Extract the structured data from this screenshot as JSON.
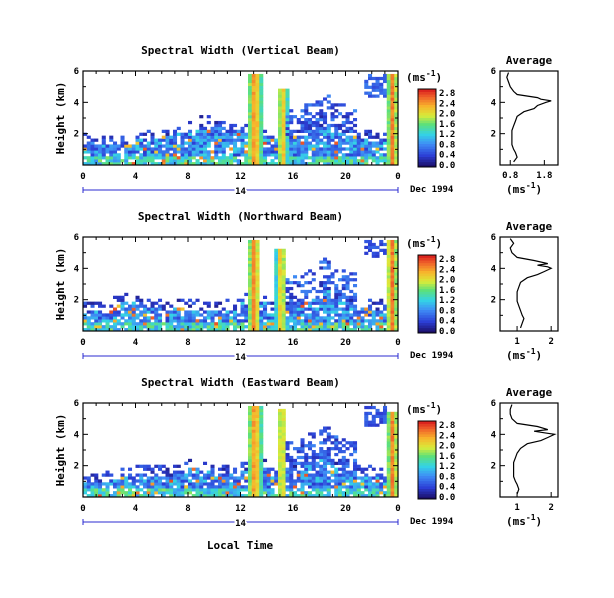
{
  "figure": {
    "xlabel": "Local Time",
    "date_label": "Dec 1994"
  },
  "chart_data": [
    {
      "type": "heatmap",
      "title": "Spectral Width (Vertical Beam)",
      "ylabel": "Height (km)",
      "xlabel": "Local Time",
      "x_ticks": [
        "0",
        "4",
        "8",
        "12",
        "16",
        "20",
        "0"
      ],
      "y_ticks": [
        "2",
        "4",
        "6"
      ],
      "day_label": "14",
      "xlim": [
        0,
        24
      ],
      "ylim": [
        0,
        6
      ],
      "colorbar": {
        "unit": "(ms-1)",
        "ticks": [
          "0.0",
          "0.4",
          "0.8",
          "1.2",
          "1.6",
          "2.0",
          "2.4",
          "2.8"
        ]
      },
      "features": [
        {
          "kind": "boundary_layer",
          "from": 0,
          "to": 24,
          "top_km": [
            1.5,
            1.4,
            1.3,
            1.4,
            1.6,
            1.6,
            1.8,
            2.1,
            2.3,
            2.5,
            2.4,
            2.2,
            2.0,
            1.9,
            1.7,
            1.6,
            1.8,
            2.2,
            2.5,
            2.0,
            1.8,
            1.6,
            1.5,
            1.5
          ]
        },
        {
          "kind": "high_width_column",
          "from": 12.6,
          "to": 13.6,
          "top_km": 5.9,
          "peak": 2.8
        },
        {
          "kind": "high_width_column",
          "from": 14.8,
          "to": 15.6,
          "top_km": 4.8,
          "peak": 2.6
        },
        {
          "kind": "high_width_column",
          "from": 23.2,
          "to": 24,
          "top_km": 5.8,
          "peak": 2.8
        },
        {
          "kind": "upper_patch",
          "from": 21.4,
          "to": 23.0,
          "bottom_km": 4.3,
          "top_km": 5.9,
          "level": 0.5
        }
      ],
      "average": {
        "title": "Average",
        "xlabel": "(ms-1)",
        "x_ticks": [
          "0.8",
          "1.8"
        ],
        "xlim": [
          0.5,
          2.2
        ],
        "y_ticks": [
          "2",
          "4",
          "6"
        ],
        "profile": {
          "height": [
            0.2,
            0.5,
            0.8,
            1.0,
            1.3,
            1.6,
            1.9,
            2.2,
            2.5,
            2.8,
            3.1,
            3.4,
            3.6,
            3.8,
            4.0,
            4.1,
            4.2,
            4.3,
            4.5,
            4.7,
            5.0,
            5.3,
            5.6,
            5.9
          ],
          "width": [
            0.9,
            1.0,
            0.95,
            0.9,
            0.85,
            0.85,
            0.85,
            0.85,
            0.9,
            0.95,
            1.0,
            1.2,
            1.5,
            1.6,
            1.85,
            2.0,
            1.7,
            1.6,
            1.0,
            0.9,
            0.8,
            0.75,
            0.7,
            0.75
          ]
        }
      }
    },
    {
      "type": "heatmap",
      "title": "Spectral Width (Northward Beam)",
      "ylabel": "Height (km)",
      "xlabel": "Local Time",
      "x_ticks": [
        "0",
        "4",
        "8",
        "12",
        "16",
        "20",
        "0"
      ],
      "y_ticks": [
        "2",
        "4",
        "6"
      ],
      "day_label": "14",
      "xlim": [
        0,
        24
      ],
      "ylim": [
        0,
        6
      ],
      "colorbar": {
        "unit": "(ms-1)",
        "ticks": [
          "0.0",
          "0.4",
          "0.8",
          "1.2",
          "1.6",
          "2.0",
          "2.4",
          "2.8"
        ]
      },
      "features": [
        {
          "kind": "boundary_layer",
          "from": 0,
          "to": 24,
          "top_km": [
            1.2,
            1.3,
            1.6,
            1.8,
            1.7,
            1.5,
            1.4,
            1.5,
            1.5,
            1.3,
            1.3,
            1.4,
            1.8,
            1.9,
            1.5,
            1.4,
            1.6,
            2.0,
            2.6,
            1.9,
            1.7,
            1.5,
            1.4,
            1.4
          ]
        },
        {
          "kind": "high_width_column",
          "from": 12.6,
          "to": 13.5,
          "top_km": 5.9,
          "peak": 2.8
        },
        {
          "kind": "high_width_column",
          "from": 14.7,
          "to": 15.5,
          "top_km": 5.2,
          "peak": 2.6
        },
        {
          "kind": "high_width_column",
          "from": 23.1,
          "to": 24,
          "top_km": 5.9,
          "peak": 2.8
        },
        {
          "kind": "upper_patch",
          "from": 21.5,
          "to": 23.0,
          "bottom_km": 4.6,
          "top_km": 5.9,
          "level": 0.4
        }
      ],
      "average": {
        "title": "Average",
        "xlabel": "(ms-1)",
        "x_ticks": [
          "1",
          "2"
        ],
        "xlim": [
          0.5,
          2.2
        ],
        "y_ticks": [
          "2",
          "4",
          "6"
        ],
        "profile": {
          "height": [
            0.2,
            0.5,
            0.8,
            1.0,
            1.3,
            1.6,
            1.9,
            2.2,
            2.5,
            2.8,
            3.1,
            3.4,
            3.6,
            3.8,
            4.0,
            4.1,
            4.2,
            4.3,
            4.5,
            4.7,
            5.0,
            5.3,
            5.6,
            5.9
          ],
          "width": [
            1.1,
            1.15,
            1.2,
            1.15,
            1.1,
            1.05,
            1.0,
            1.0,
            1.0,
            1.05,
            1.1,
            1.3,
            1.6,
            1.8,
            2.0,
            1.9,
            1.6,
            1.9,
            1.5,
            1.0,
            0.85,
            0.8,
            0.9,
            0.8
          ]
        }
      }
    },
    {
      "type": "heatmap",
      "title": "Spectral Width (Eastward Beam)",
      "ylabel": "Height (km)",
      "xlabel": "Local Time",
      "x_ticks": [
        "0",
        "4",
        "8",
        "12",
        "16",
        "20",
        "0"
      ],
      "y_ticks": [
        "2",
        "4",
        "6"
      ],
      "day_label": "14",
      "xlim": [
        0,
        24
      ],
      "ylim": [
        0,
        6
      ],
      "colorbar": {
        "unit": "(ms-1)",
        "ticks": [
          "0.0",
          "0.4",
          "0.8",
          "1.2",
          "1.6",
          "2.0",
          "2.4",
          "2.8"
        ]
      },
      "features": [
        {
          "kind": "boundary_layer",
          "from": 0,
          "to": 24,
          "top_km": [
            0.9,
            1.0,
            1.1,
            1.3,
            1.5,
            1.4,
            1.4,
            1.6,
            1.9,
            1.7,
            1.5,
            1.5,
            1.7,
            1.8,
            1.6,
            1.5,
            1.7,
            2.1,
            2.5,
            2.0,
            1.6,
            1.4,
            1.3,
            1.3
          ]
        },
        {
          "kind": "high_width_column",
          "from": 12.6,
          "to": 13.6,
          "top_km": 5.9,
          "peak": 2.8
        },
        {
          "kind": "high_width_column",
          "from": 14.8,
          "to": 15.5,
          "top_km": 5.6,
          "peak": 2.6
        },
        {
          "kind": "high_width_column",
          "from": 23.2,
          "to": 24,
          "top_km": 5.5,
          "peak": 2.8
        },
        {
          "kind": "upper_patch",
          "from": 21.4,
          "to": 23.0,
          "bottom_km": 4.5,
          "top_km": 5.8,
          "level": 0.4
        }
      ],
      "average": {
        "title": "Average",
        "xlabel": "(ms-1)",
        "x_ticks": [
          "1",
          "2"
        ],
        "xlim": [
          0.5,
          2.2
        ],
        "y_ticks": [
          "2",
          "4",
          "6"
        ],
        "profile": {
          "height": [
            0.2,
            0.5,
            0.8,
            1.0,
            1.3,
            1.6,
            1.9,
            2.2,
            2.5,
            2.8,
            3.1,
            3.4,
            3.6,
            3.8,
            4.0,
            4.1,
            4.2,
            4.3,
            4.5,
            4.7,
            5.0,
            5.3,
            5.6,
            5.9
          ],
          "width": [
            1.0,
            1.05,
            1.0,
            0.95,
            0.9,
            0.9,
            0.9,
            0.9,
            0.95,
            1.0,
            1.1,
            1.3,
            1.7,
            1.9,
            2.1,
            1.8,
            1.5,
            1.9,
            1.6,
            1.0,
            0.85,
            0.8,
            0.8,
            0.85
          ]
        }
      }
    }
  ]
}
